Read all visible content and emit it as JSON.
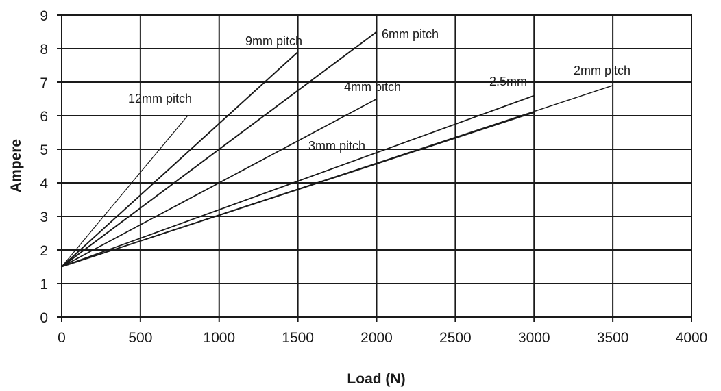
{
  "chart_data": {
    "type": "line",
    "title": "",
    "xlabel": "Load (N)",
    "ylabel": "Ampere",
    "xlim": [
      0,
      4000
    ],
    "ylim": [
      0,
      9
    ],
    "xticks": [
      "0",
      "500",
      "1000",
      "1500",
      "2000",
      "2500",
      "3000",
      "3500",
      "4000"
    ],
    "yticks": [
      "0",
      "1",
      "2",
      "3",
      "4",
      "5",
      "6",
      "7",
      "8",
      "9"
    ],
    "grid": true,
    "legend": "none",
    "line_color": "#1a1a1a",
    "series": [
      {
        "name": "12mm pitch",
        "x": [
          0,
          800
        ],
        "y": [
          1.5,
          6.0
        ],
        "stroke": 1.2
      },
      {
        "name": "9mm pitch",
        "x": [
          0,
          1500
        ],
        "y": [
          1.5,
          7.9
        ],
        "stroke": 2.0
      },
      {
        "name": "6mm pitch",
        "x": [
          0,
          2000
        ],
        "y": [
          1.5,
          8.5
        ],
        "stroke": 2.0
      },
      {
        "name": "4mm pitch",
        "x": [
          0,
          2000
        ],
        "y": [
          1.5,
          6.5
        ],
        "stroke": 1.8
      },
      {
        "name": "3mm pitch",
        "x": [
          0,
          3000
        ],
        "y": [
          1.5,
          6.6
        ],
        "stroke": 1.8
      },
      {
        "name": "2.5mm",
        "x": [
          0,
          3000
        ],
        "y": [
          1.5,
          6.1
        ],
        "stroke": 1.8
      },
      {
        "name": "2mm pitch",
        "x": [
          0,
          3500
        ],
        "y": [
          1.5,
          6.9
        ],
        "stroke": 1.5
      }
    ]
  }
}
